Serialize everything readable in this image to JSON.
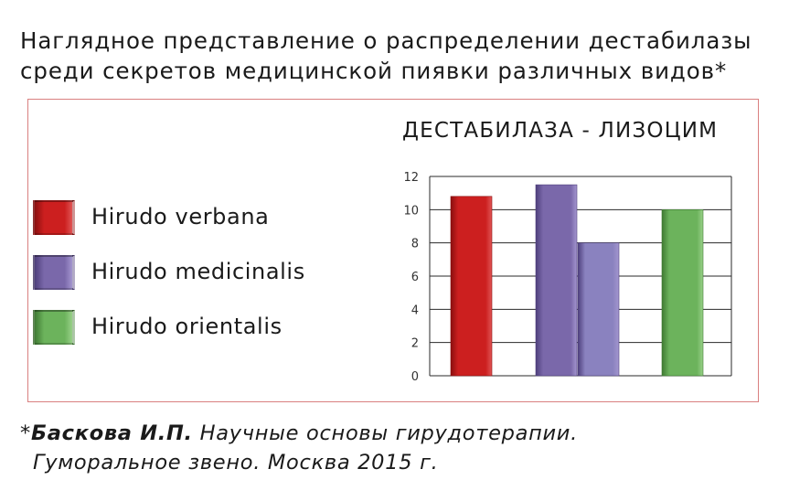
{
  "heading": {
    "line1": "Наглядное представление о распределении дестабилазы",
    "line2": "среди секретов медицинской пиявки различных видов*"
  },
  "chart_data": {
    "type": "bar",
    "title": "ДЕСТАБИЛАЗА - ЛИЗОЦИМ",
    "xlabel": "",
    "ylabel": "",
    "ylim": [
      0,
      12
    ],
    "yticks": [
      0,
      2,
      4,
      6,
      8,
      10,
      12
    ],
    "grid": true,
    "legend_position": "left",
    "series": [
      {
        "name": "Hirudo verbana",
        "color": "#cc1f1f",
        "light": "#e05555",
        "dark": "#8a0f0f"
      },
      {
        "name": "Hirudo medicinalis",
        "color": "#7a68aa",
        "light": "#a496cf",
        "dark": "#4e3f7c"
      },
      {
        "name": "Hirudo orientalis",
        "color": "#6cb35c",
        "light": "#98d088",
        "dark": "#3f7a33"
      }
    ],
    "bars": [
      {
        "series": 0,
        "value": 10.8,
        "color": "#cc1f1f"
      },
      {
        "series": 1,
        "value": 11.5,
        "color": "#7a68aa"
      },
      {
        "series": 1,
        "value": 8.0,
        "color": "#8a82bf"
      },
      {
        "series": 2,
        "value": 10.0,
        "color": "#6cb35c"
      }
    ]
  },
  "footnote": {
    "mark": "*",
    "author": "Баскова И.П.",
    "line1_rest": " Научные основы гирудотерапии.",
    "line2": "Гуморальное звено. Москва 2015 г."
  }
}
